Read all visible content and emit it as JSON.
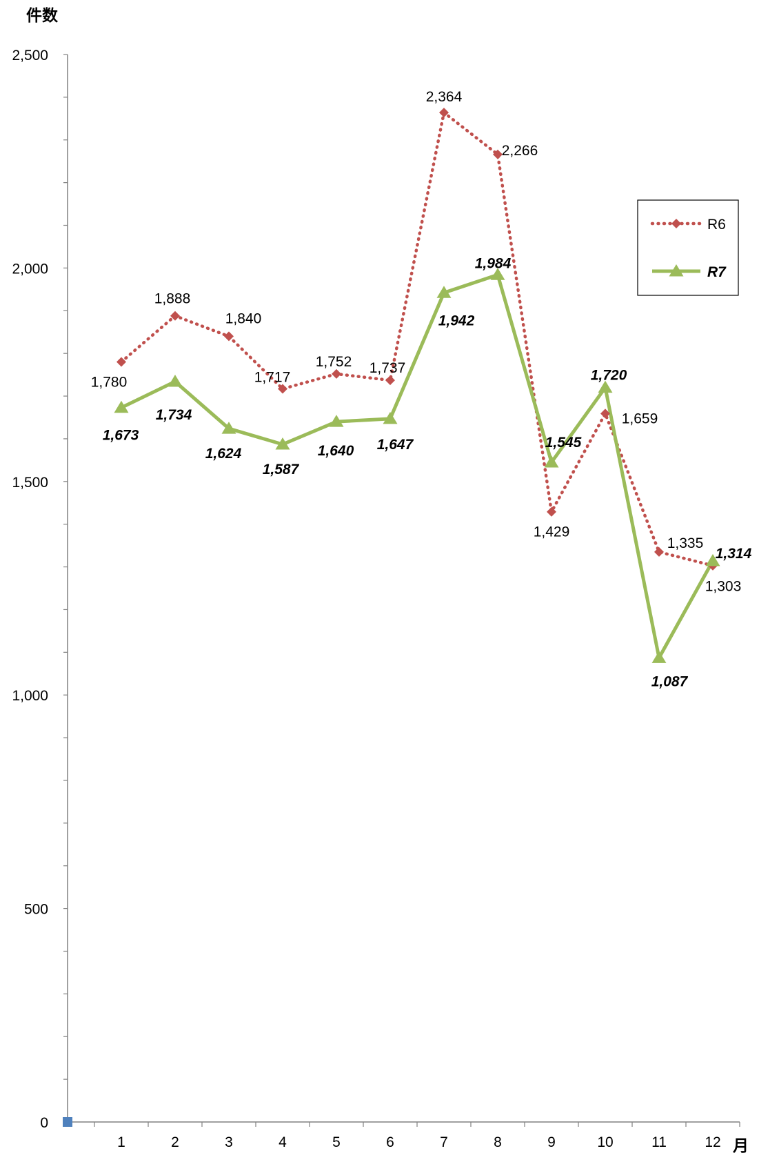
{
  "chart_data": {
    "type": "line",
    "y_axis_title": "件数",
    "x_axis_title": "月",
    "categories": [
      "1",
      "2",
      "3",
      "4",
      "5",
      "6",
      "7",
      "8",
      "9",
      "10",
      "11",
      "12"
    ],
    "ylim": [
      0,
      2500
    ],
    "y_ticks": [
      0,
      500,
      1000,
      1500,
      2000,
      2500
    ],
    "y_tick_labels": [
      "0",
      "500",
      "1,000",
      "1,500",
      "2,000",
      "2,500"
    ],
    "y_minor_step": 100,
    "grid": false,
    "legend_position": "right",
    "series": [
      {
        "name": "R6",
        "values": [
          1780,
          1888,
          1840,
          1717,
          1752,
          1737,
          2364,
          2266,
          1429,
          1659,
          1335,
          1303
        ],
        "labels": [
          "1,780",
          "1,888",
          "1,840",
          "1,717",
          "1,752",
          "1,737",
          "2,364",
          "2,266",
          "1,429",
          "1,659",
          "1,335",
          "1,303"
        ],
        "color": "#C0504D",
        "line_style": "dotted",
        "marker": "diamond"
      },
      {
        "name": "R7",
        "values": [
          1673,
          1734,
          1624,
          1587,
          1640,
          1647,
          1942,
          1984,
          1545,
          1720,
          1087,
          1314
        ],
        "labels": [
          "1,673",
          "1,734",
          "1,624",
          "1,587",
          "1,640",
          "1,647",
          "1,942",
          "1,984",
          "1,545",
          "1,720",
          "1,087",
          "1,314"
        ],
        "color": "#9BBB59",
        "line_style": "solid",
        "marker": "triangle"
      }
    ],
    "origin_marker_color": "#4F81BD"
  }
}
